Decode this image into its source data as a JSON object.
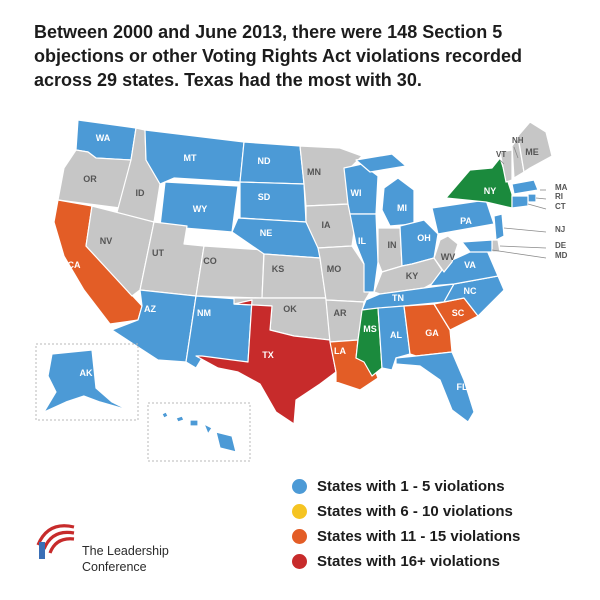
{
  "title": "Between 2000 and June 2013, there were 148 Section 5 objections or other Voting Rights Act violations recorded across 29 states. Texas had the most with 30.",
  "colors": {
    "none": "#c6c6c6",
    "tier1": "#4c9ad6",
    "tier2": "#f5c422",
    "tier3": "#e35d26",
    "tier4": "#c72b2b",
    "green": "#1b8a3d",
    "border": "#ffffff"
  },
  "legend": [
    {
      "label": "States with 1 - 5 violations",
      "color": "#4c9ad6"
    },
    {
      "label": "States with 6 - 10 violations",
      "color": "#f5c422"
    },
    {
      "label": "States with 11 - 15 violations",
      "color": "#e35d26"
    },
    {
      "label": "States with 16+ violations",
      "color": "#c72b2b"
    }
  ],
  "states": [
    {
      "abbr": "WA",
      "tier": "tier1"
    },
    {
      "abbr": "OR",
      "tier": "none"
    },
    {
      "abbr": "CA",
      "tier": "tier3"
    },
    {
      "abbr": "ID",
      "tier": "none"
    },
    {
      "abbr": "NV",
      "tier": "none"
    },
    {
      "abbr": "MT",
      "tier": "tier1"
    },
    {
      "abbr": "WY",
      "tier": "tier1"
    },
    {
      "abbr": "UT",
      "tier": "none"
    },
    {
      "abbr": "AZ",
      "tier": "tier1"
    },
    {
      "abbr": "CO",
      "tier": "none"
    },
    {
      "abbr": "NM",
      "tier": "tier1"
    },
    {
      "abbr": "ND",
      "tier": "tier1"
    },
    {
      "abbr": "SD",
      "tier": "tier1"
    },
    {
      "abbr": "NE",
      "tier": "tier1"
    },
    {
      "abbr": "KS",
      "tier": "none"
    },
    {
      "abbr": "OK",
      "tier": "none"
    },
    {
      "abbr": "TX",
      "tier": "tier4"
    },
    {
      "abbr": "MN",
      "tier": "none"
    },
    {
      "abbr": "IA",
      "tier": "none"
    },
    {
      "abbr": "MO",
      "tier": "none"
    },
    {
      "abbr": "AR",
      "tier": "none"
    },
    {
      "abbr": "LA",
      "tier": "tier3"
    },
    {
      "abbr": "WI",
      "tier": "tier1"
    },
    {
      "abbr": "IL",
      "tier": "tier1"
    },
    {
      "abbr": "MI",
      "tier": "tier1"
    },
    {
      "abbr": "IN",
      "tier": "none"
    },
    {
      "abbr": "OH",
      "tier": "tier1"
    },
    {
      "abbr": "KY",
      "tier": "none"
    },
    {
      "abbr": "TN",
      "tier": "tier1"
    },
    {
      "abbr": "MS",
      "tier": "green"
    },
    {
      "abbr": "AL",
      "tier": "tier1"
    },
    {
      "abbr": "GA",
      "tier": "tier3"
    },
    {
      "abbr": "FL",
      "tier": "tier1"
    },
    {
      "abbr": "SC",
      "tier": "tier3"
    },
    {
      "abbr": "NC",
      "tier": "tier1"
    },
    {
      "abbr": "VA",
      "tier": "tier1"
    },
    {
      "abbr": "WV",
      "tier": "none"
    },
    {
      "abbr": "PA",
      "tier": "tier1"
    },
    {
      "abbr": "NY",
      "tier": "green"
    },
    {
      "abbr": "VT",
      "tier": "none"
    },
    {
      "abbr": "NH",
      "tier": "none"
    },
    {
      "abbr": "ME",
      "tier": "none"
    },
    {
      "abbr": "MA",
      "tier": "tier1"
    },
    {
      "abbr": "RI",
      "tier": "tier1"
    },
    {
      "abbr": "CT",
      "tier": "tier1"
    },
    {
      "abbr": "NJ",
      "tier": "tier1"
    },
    {
      "abbr": "DE",
      "tier": "none"
    },
    {
      "abbr": "MD",
      "tier": "tier1"
    },
    {
      "abbr": "AK",
      "tier": "tier1"
    },
    {
      "abbr": "HI",
      "tier": "tier1"
    }
  ],
  "logo": {
    "line1": "The Leadership",
    "line2": "Conference"
  }
}
